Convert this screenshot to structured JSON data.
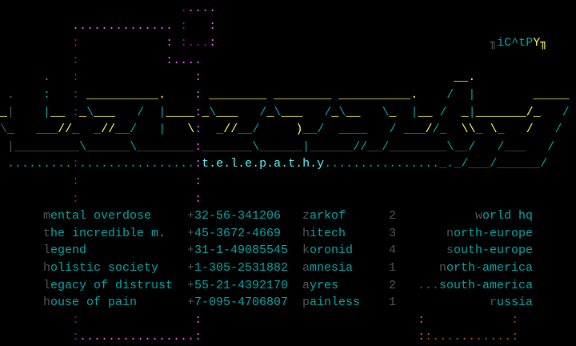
{
  "colors": {
    "y": "#ffff55",
    "c": "#00aaaa",
    "C": "#55ffff",
    "g": "#555555",
    "m": "#aa00aa",
    "M": "#ff55ff",
    "r": "#ff5555",
    "o": "#aa5500",
    "background": "#000000"
  },
  "art": [
    [
      [
        "                         ",
        ""
      ],
      [
        ".",
        "m"
      ],
      [
        "....",
        "M"
      ]
    ],
    [
      [
        "          ",
        ""
      ],
      [
        "..............",
        "M"
      ],
      [
        " ",
        ""
      ],
      [
        ":",
        "m"
      ],
      [
        "   ",
        ""
      ],
      [
        ":",
        "M"
      ]
    ],
    [
      [
        "          ",
        ""
      ],
      [
        ":",
        "m"
      ],
      [
        "            ",
        ""
      ],
      [
        ":",
        "M"
      ],
      [
        " ",
        ""
      ],
      [
        ":",
        "m"
      ],
      [
        "...",
        "m"
      ],
      [
        ":",
        "M"
      ],
      [
        "                                      ",
        ""
      ],
      [
        "╖",
        "g"
      ],
      [
        "iC^tP",
        "c"
      ],
      [
        "Y",
        "y"
      ],
      [
        "╖",
        "y"
      ]
    ],
    [
      [
        "          ",
        ""
      ],
      [
        ":",
        "m"
      ],
      [
        "            ",
        ""
      ],
      [
        ":",
        "M"
      ],
      [
        "....",
        "M"
      ]
    ],
    [
      [
        "      ",
        ""
      ],
      [
        ".",
        "c"
      ],
      [
        "   ",
        ""
      ],
      [
        ":",
        "m"
      ],
      [
        "                ",
        ""
      ],
      [
        ":",
        "M"
      ],
      [
        "                                   ",
        ""
      ],
      [
        "__",
        "y"
      ],
      [
        ".",
        "y"
      ]
    ],
    [
      [
        " ",
        ""
      ],
      [
        ".",
        "g"
      ],
      [
        "    ",
        ""
      ],
      [
        ":",
        "c"
      ],
      [
        "   ",
        ""
      ],
      [
        ":",
        "m"
      ],
      [
        " ",
        ""
      ],
      [
        "__________",
        "y"
      ],
      [
        ".",
        "y"
      ],
      [
        "    ",
        ""
      ],
      [
        ":",
        "M"
      ],
      [
        " ",
        ""
      ],
      [
        "________",
        "y"
      ],
      [
        " ",
        ""
      ],
      [
        "________",
        "y"
      ],
      [
        " ",
        ""
      ],
      [
        "__________",
        "y"
      ],
      [
        ".",
        "y"
      ],
      [
        "    ",
        ""
      ],
      [
        "/",
        "c"
      ],
      [
        "  ",
        ""
      ],
      [
        "|",
        "c"
      ],
      [
        "        ",
        ""
      ],
      [
        "_____",
        "y"
      ]
    ],
    [
      [
        "_",
        "y"
      ],
      [
        "|",
        "g"
      ],
      [
        "    ",
        ""
      ],
      [
        "|",
        "c"
      ],
      [
        "__",
        "y"
      ],
      [
        " ",
        ""
      ],
      [
        ":",
        "m"
      ],
      [
        "_",
        "y"
      ],
      [
        "\\",
        "c"
      ],
      [
        "___",
        "y"
      ],
      [
        "   ",
        ""
      ],
      [
        "/",
        "c"
      ],
      [
        "  ",
        ""
      ],
      [
        "|",
        "c"
      ],
      [
        "____",
        "y"
      ],
      [
        ":",
        "M"
      ],
      [
        "_",
        "y"
      ],
      [
        "\\",
        "c"
      ],
      [
        "___",
        "y"
      ],
      [
        "   ",
        ""
      ],
      [
        "/",
        "c"
      ],
      [
        "_",
        "y"
      ],
      [
        "\\",
        "c"
      ],
      [
        "___",
        "y"
      ],
      [
        "   ",
        ""
      ],
      [
        "/",
        "c"
      ],
      [
        "_",
        "y"
      ],
      [
        "\\",
        "c"
      ],
      [
        "__",
        "y"
      ],
      [
        "   ",
        ""
      ],
      [
        "\\",
        "c"
      ],
      [
        "_",
        "y"
      ],
      [
        "  ",
        ""
      ],
      [
        "|",
        "c"
      ],
      [
        "__",
        "y"
      ],
      [
        " ",
        ""
      ],
      [
        "/",
        "c"
      ],
      [
        "  ",
        ""
      ],
      [
        "_",
        "y"
      ],
      [
        "|",
        "c"
      ],
      [
        "_______",
        "y"
      ],
      [
        "/",
        "y"
      ],
      [
        "_",
        "y"
      ],
      [
        "   ",
        ""
      ],
      [
        "/",
        "c"
      ]
    ],
    [
      [
        "\\",
        "g"
      ],
      [
        "_",
        "c"
      ],
      [
        "   ",
        ""
      ],
      [
        "___",
        "c"
      ],
      [
        "//",
        "y"
      ],
      [
        "_",
        "c"
      ],
      [
        "  ",
        ""
      ],
      [
        "_",
        "c"
      ],
      [
        "//",
        "y"
      ],
      [
        "__",
        "c"
      ],
      [
        "/",
        "c"
      ],
      [
        "   ",
        ""
      ],
      [
        "|",
        "c"
      ],
      [
        "   ",
        ""
      ],
      [
        "\\",
        "y"
      ],
      [
        ":",
        "M"
      ],
      [
        "  ",
        ""
      ],
      [
        "_",
        "c"
      ],
      [
        "//",
        "y"
      ],
      [
        "__",
        "c"
      ],
      [
        "/",
        "c"
      ],
      [
        "     ",
        ""
      ],
      [
        ")",
        "y"
      ],
      [
        "__",
        "c"
      ],
      [
        "/",
        "c"
      ],
      [
        "  ",
        ""
      ],
      [
        "____",
        "c"
      ],
      [
        "   ",
        ""
      ],
      [
        "/",
        "c"
      ],
      [
        " ",
        ""
      ],
      [
        "___",
        "c"
      ],
      [
        "/",
        "y"
      ],
      [
        "/",
        "c"
      ],
      [
        "_",
        "c"
      ],
      [
        "  ",
        ""
      ],
      [
        "\\\\",
        "y"
      ],
      [
        "_",
        "c"
      ],
      [
        " ",
        ""
      ],
      [
        "\\",
        "y"
      ],
      [
        "_",
        "c"
      ],
      [
        "   ",
        ""
      ],
      [
        "/",
        "y"
      ],
      [
        "   ",
        ""
      ],
      [
        "/",
        "c"
      ]
    ],
    [
      [
        " ",
        ""
      ],
      [
        "|",
        "g"
      ],
      [
        "_________",
        "g"
      ],
      [
        "\\",
        "c"
      ],
      [
        "______",
        "g"
      ],
      [
        "\\",
        "c"
      ],
      [
        "________",
        "g"
      ],
      [
        ":",
        "M"
      ],
      [
        "_______",
        "g"
      ],
      [
        "\\",
        "c"
      ],
      [
        "______",
        "g"
      ],
      [
        "|",
        "c"
      ],
      [
        "______",
        "g"
      ],
      [
        "//",
        "c"
      ],
      [
        "__",
        "g"
      ],
      [
        "/",
        "c"
      ],
      [
        "________",
        "g"
      ],
      [
        "\\",
        "c"
      ],
      [
        "__",
        "g"
      ],
      [
        "/",
        "c"
      ],
      [
        "   ",
        ""
      ],
      [
        "/",
        "c"
      ],
      [
        "___",
        "g"
      ],
      [
        "   ",
        ""
      ],
      [
        "/",
        "c"
      ]
    ],
    [
      [
        " ",
        ""
      ],
      [
        ".........",
        "c"
      ],
      [
        ":",
        "m"
      ],
      [
        "................",
        "c"
      ],
      [
        ":",
        "M"
      ],
      [
        "t.e.l.e.p.a.t.h.y",
        "C"
      ],
      [
        "................",
        "c"
      ],
      [
        "_",
        "g"
      ],
      [
        ".",
        "c"
      ],
      [
        "_",
        "g"
      ],
      [
        "/",
        "c"
      ],
      [
        "___",
        "g"
      ],
      [
        "/",
        "c"
      ],
      [
        "______",
        "g"
      ],
      [
        "/",
        "c"
      ]
    ],
    [
      [
        "          ",
        ""
      ],
      [
        ":",
        "m"
      ],
      [
        "                ",
        ""
      ],
      [
        ":",
        "M"
      ]
    ],
    [
      [
        "          ",
        ""
      ],
      [
        ":",
        "m"
      ],
      [
        "                ",
        ""
      ],
      [
        ":",
        "M"
      ]
    ]
  ],
  "art_bottom": [
    [
      [
        "          ",
        ""
      ],
      [
        ":",
        "m"
      ],
      [
        "                ",
        ""
      ],
      [
        ":",
        "M"
      ],
      [
        "                              ",
        ""
      ],
      [
        ":",
        "r"
      ],
      [
        "            ",
        ""
      ],
      [
        ":",
        "o"
      ]
    ],
    [
      [
        "          ",
        ""
      ],
      [
        ":",
        "m"
      ],
      [
        "................",
        "M"
      ],
      [
        ":",
        "M"
      ],
      [
        "                              ",
        ""
      ],
      [
        ":",
        "r"
      ],
      [
        ":",
        "o"
      ],
      [
        "...........",
        "o"
      ],
      [
        ":",
        "o"
      ]
    ]
  ],
  "groups": [
    {
      "name": "mental overdose",
      "phone": "+32-56-341206",
      "bbs": "zarkof",
      "nodes": "2",
      "region": "world hq",
      "prefix": ""
    },
    {
      "name": "the incredible m.",
      "phone": "+45-3672-4669",
      "bbs": "hitech",
      "nodes": "3",
      "region": "north-europe",
      "prefix": ""
    },
    {
      "name": "legend",
      "phone": "+31-1-49085545",
      "bbs": "koronid",
      "nodes": "4",
      "region": "south-europe",
      "prefix": ""
    },
    {
      "name": "holistic society",
      "phone": "+1-305-2531882",
      "bbs": "amnesia",
      "nodes": "1",
      "region": "north-america",
      "prefix": ""
    },
    {
      "name": "legacy of distrust",
      "phone": "+55-21-4392170",
      "bbs": "ayres",
      "nodes": "2",
      "region": "south-america",
      "prefix": "..."
    },
    {
      "name": "house of pain",
      "phone": "+7-095-4706807",
      "bbs": "painless",
      "nodes": "1",
      "region": "russia",
      "prefix": ""
    }
  ]
}
